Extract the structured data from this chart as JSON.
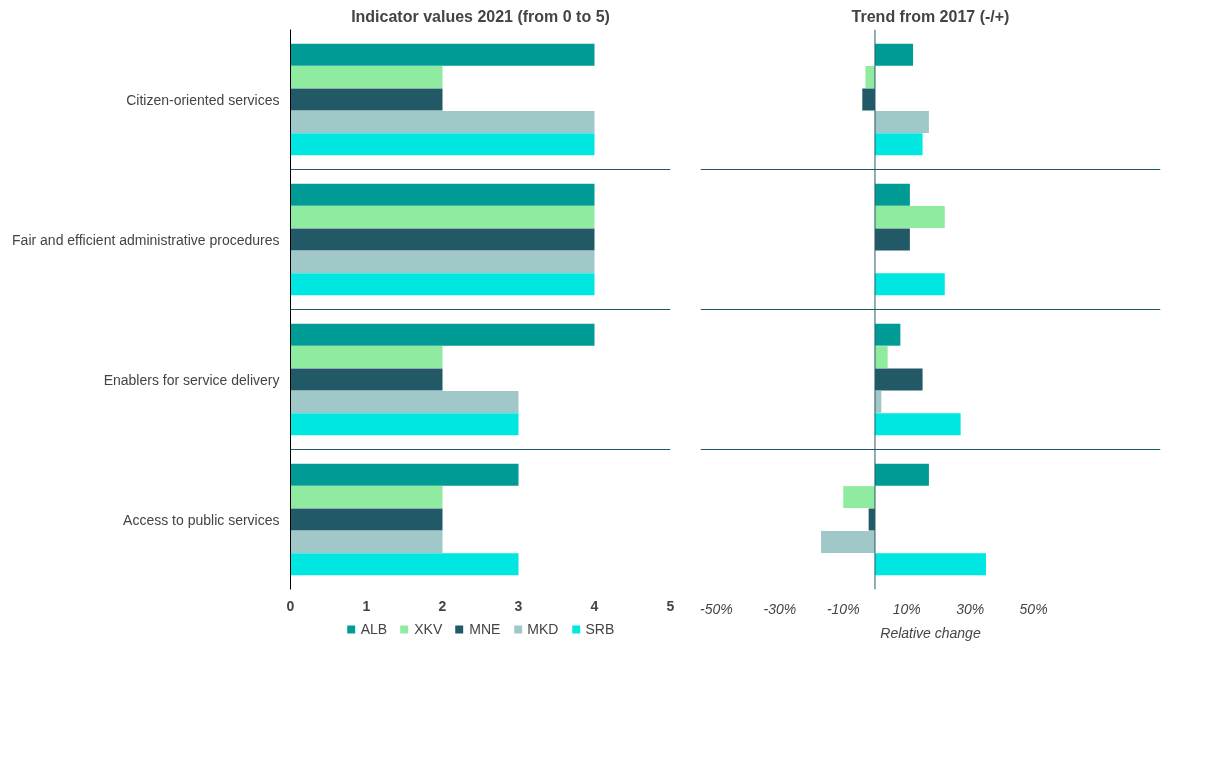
{
  "chart_data": [
    {
      "type": "bar",
      "orientation": "horizontal",
      "title": "Indicator values 2021 (from 0 to 5)",
      "categories": [
        "Citizen-oriented services",
        "Fair and efficient administrative procedures",
        "Enablers for service delivery",
        "Access to public services"
      ],
      "series": [
        {
          "name": "ALB",
          "color": "#009b94",
          "values": [
            4,
            4,
            4,
            3
          ]
        },
        {
          "name": "XKV",
          "color": "#8eeb9f",
          "values": [
            2,
            4,
            2,
            2
          ]
        },
        {
          "name": "MNE",
          "color": "#215967",
          "values": [
            2,
            4,
            2,
            2
          ]
        },
        {
          "name": "MKD",
          "color": "#a1c8c8",
          "values": [
            4,
            4,
            3,
            2
          ]
        },
        {
          "name": "SRB",
          "color": "#00e6e0",
          "values": [
            4,
            4,
            3,
            3
          ]
        }
      ],
      "xlim": [
        0,
        5
      ],
      "xticks": [
        0,
        1,
        2,
        3,
        4,
        5
      ],
      "grid": "y",
      "legend": "bottom"
    },
    {
      "type": "bar",
      "orientation": "horizontal",
      "title": "Trend from 2017 (-/+)",
      "xlabel": "Relative change",
      "categories": [
        null,
        null,
        null,
        null
      ],
      "series": [
        {
          "color": "#009b94",
          "values": [
            12,
            11,
            8,
            17
          ]
        },
        {
          "color": "#8eeb9f",
          "values": [
            -3,
            22,
            4,
            -10
          ]
        },
        {
          "color": "#215967",
          "values": [
            -4,
            11,
            15,
            -2
          ]
        },
        {
          "color": "#a1c8c8",
          "values": [
            17,
            null,
            2,
            -17
          ]
        },
        {
          "color": "#00e6e0",
          "values": [
            15,
            22,
            27,
            35
          ]
        }
      ],
      "xlim": [
        -55,
        90
      ],
      "xticks": [
        {
          "value": -50,
          "label": "-50%"
        },
        {
          "value": -30,
          "label": "-30%"
        },
        {
          "value": -10,
          "label": "-10%"
        },
        {
          "value": 10,
          "label": "10%"
        },
        {
          "value": 30,
          "label": "30%"
        },
        {
          "value": 50,
          "label": "50%"
        }
      ],
      "ref_lines": [
        {
          "axis": "x",
          "value": 0,
          "color": "#215967"
        }
      ],
      "grid": "y",
      "tick_labels": "x"
    }
  ]
}
